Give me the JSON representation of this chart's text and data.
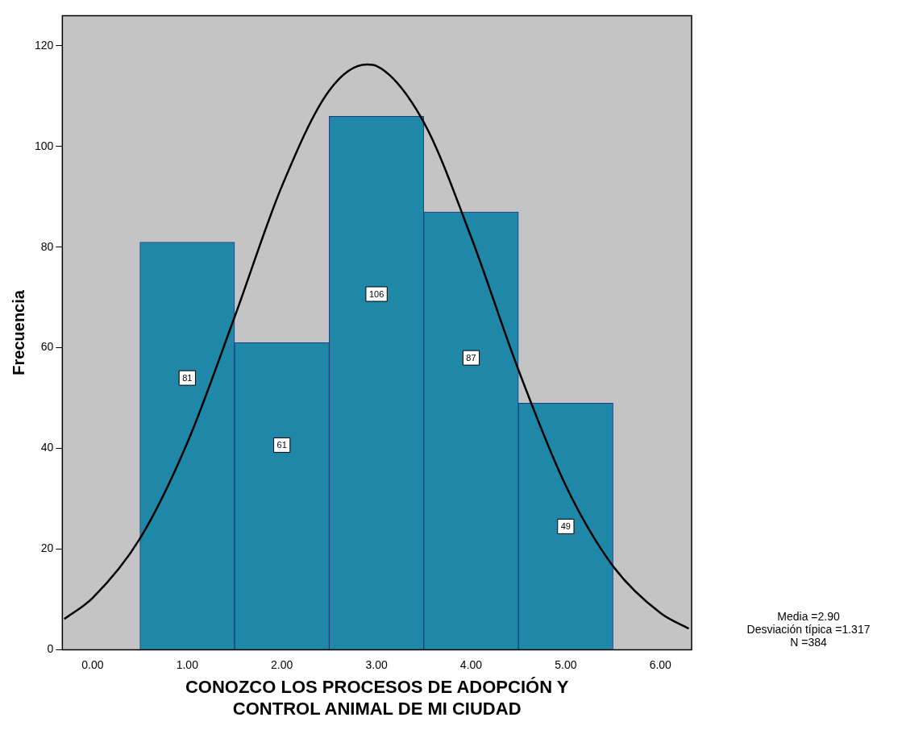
{
  "chart_data": {
    "type": "histogram",
    "xlabel": "CONOZCO LOS PROCESOS DE ADOPCIÓN Y CONTROL ANIMAL DE MI CIUDAD",
    "ylabel": "Frecuencia",
    "bins": [
      0.5,
      1.5,
      2.5,
      3.5,
      4.5,
      5.5
    ],
    "values": [
      81,
      61,
      106,
      87,
      49
    ],
    "color": "#1f87a8",
    "value_labels": [
      "81",
      "61",
      "106",
      "87",
      "49"
    ],
    "series": [
      {
        "type": "line",
        "color": "#000000",
        "x": [
          -0.3,
          0,
          0.5,
          1,
          1.5,
          2,
          2.5,
          2.9,
          3,
          3.5,
          4,
          4.5,
          5,
          5.5,
          6,
          6.3
        ],
        "values": [
          6.1,
          10.3,
          22.1,
          41.1,
          66.1,
          92.1,
          111.1,
          116.3,
          116,
          104.8,
          82,
          55.6,
          32.6,
          16.6,
          7.3,
          4.2
        ]
      }
    ],
    "xlim": [
      -0.32,
      6.33
    ],
    "xticks": [
      {
        "value": 0,
        "label": "0.00"
      },
      {
        "value": 1,
        "label": "1.00"
      },
      {
        "value": 2,
        "label": "2.00"
      },
      {
        "value": 3,
        "label": "3.00"
      },
      {
        "value": 4,
        "label": "4.00"
      },
      {
        "value": 5,
        "label": "5.00"
      },
      {
        "value": 6,
        "label": "6.00"
      }
    ],
    "ylim": [
      0,
      126
    ],
    "yticks": [
      0,
      20,
      40,
      60,
      80,
      100,
      120
    ],
    "grid": false,
    "legend": false,
    "annotations": [
      "Media =2.90",
      "Desviación típica =1.317",
      "N =384"
    ]
  }
}
